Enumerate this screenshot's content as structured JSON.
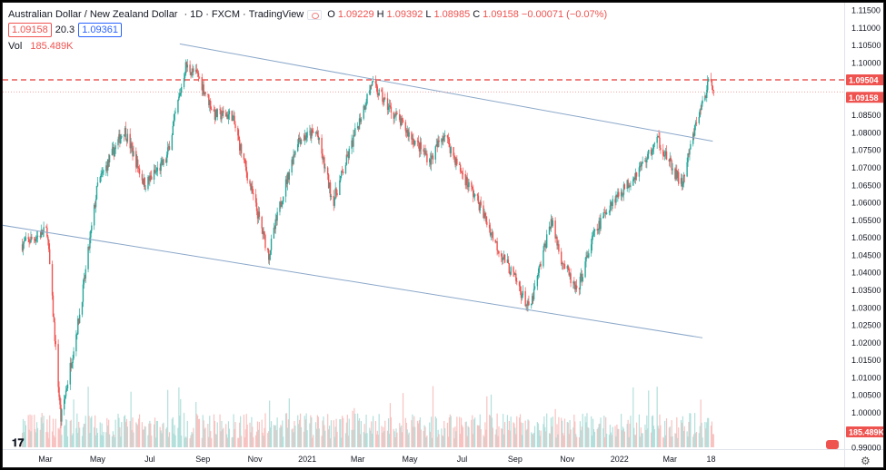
{
  "header": {
    "symbol": "Australian Dollar / New Zealand Dollar",
    "interval": "1D",
    "exchange": "FXCM",
    "source": "TradingView",
    "ohlc": [
      {
        "k": "O",
        "v": "1.09229"
      },
      {
        "k": "H",
        "v": "1.09392"
      },
      {
        "k": "L",
        "v": "1.08985"
      },
      {
        "k": "C",
        "v": "1.09158"
      },
      {
        "k": "",
        "v": "−0.00071 (−0.07%)"
      }
    ]
  },
  "chips": {
    "bid": "1.09158",
    "spread": "20.3",
    "ask": "1.09361"
  },
  "volume": {
    "label": "Vol",
    "value": "185.489K"
  },
  "colors": {
    "up": "#26a69a",
    "down": "#ef5350",
    "trend": "#8aa7c9",
    "resistance": "#e53935"
  },
  "icons": {
    "logo": "tradingview-logo-icon",
    "settings": "gear-icon",
    "snapshot": "camera-icon"
  },
  "chart_data": {
    "type": "candlestick",
    "title": "",
    "x_axis": {
      "ticks": [
        "Mar",
        "May",
        "Jul",
        "Sep",
        "Nov",
        "2021",
        "Mar",
        "May",
        "Jul",
        "Sep",
        "Nov",
        "2022",
        "Mar",
        "18"
      ]
    },
    "y_axis": {
      "ticks": [
        "1.11500",
        "1.11000",
        "1.10500",
        "1.10000",
        "1.09500",
        "1.09000",
        "1.08500",
        "1.08000",
        "1.07500",
        "1.07000",
        "1.06500",
        "1.06000",
        "1.05500",
        "1.05000",
        "1.04500",
        "1.04000",
        "1.03500",
        "1.03000",
        "1.02500",
        "1.02000",
        "1.01500",
        "1.01000",
        "1.00500",
        "1.00000",
        "0.99500",
        "0.99000"
      ],
      "range": [
        0.9875,
        1.1175
      ]
    },
    "price_labels": [
      {
        "value": 1.09504,
        "text": "1.09504",
        "style": "resistance"
      },
      {
        "value": 1.09158,
        "text": "1.09158",
        "style": "last"
      }
    ],
    "volume_label": "185.489K",
    "trendlines": [
      {
        "name": "upper channel",
        "from": {
          "date": "2020-08-05",
          "price": 1.1053
        },
        "to": {
          "date": "2022-04-20",
          "price": 1.0775
        }
      },
      {
        "name": "lower channel",
        "from": {
          "date": "2020-01-10",
          "price": 1.0535
        },
        "to": {
          "date": "2022-04-08",
          "price": 1.0213
        }
      }
    ],
    "resistance_level": 1.09504,
    "last_price": 1.09158,
    "anchors": [
      [
        "2020-02-03",
        1.048
      ],
      [
        "2020-03-03",
        1.052
      ],
      [
        "2020-03-19",
        0.998
      ],
      [
        "2020-04-10",
        1.028
      ],
      [
        "2020-05-01",
        1.065
      ],
      [
        "2020-06-01",
        1.081
      ],
      [
        "2020-06-25",
        1.065
      ],
      [
        "2020-07-20",
        1.072
      ],
      [
        "2020-08-12",
        1.099
      ],
      [
        "2020-08-27",
        1.096
      ],
      [
        "2020-09-15",
        1.085
      ],
      [
        "2020-10-05",
        1.085
      ],
      [
        "2020-10-26",
        1.065
      ],
      [
        "2020-11-17",
        1.045
      ],
      [
        "2020-12-01",
        1.06
      ],
      [
        "2020-12-21",
        1.078
      ],
      [
        "2021-01-12",
        1.08
      ],
      [
        "2021-01-31",
        1.06
      ],
      [
        "2021-02-20",
        1.075
      ],
      [
        "2021-03-17",
        1.094
      ],
      [
        "2021-04-10",
        1.086
      ],
      [
        "2021-05-05",
        1.078
      ],
      [
        "2021-05-25",
        1.072
      ],
      [
        "2021-06-10",
        1.08
      ],
      [
        "2021-06-25",
        1.071
      ],
      [
        "2021-07-20",
        1.06
      ],
      [
        "2021-08-10",
        1.048
      ],
      [
        "2021-09-01",
        1.038
      ],
      [
        "2021-09-18",
        1.029
      ],
      [
        "2021-10-13",
        1.055
      ],
      [
        "2021-10-25",
        1.044
      ],
      [
        "2021-11-12",
        1.034
      ],
      [
        "2021-12-01",
        1.05
      ],
      [
        "2021-12-22",
        1.06
      ],
      [
        "2022-01-10",
        1.065
      ],
      [
        "2022-01-31",
        1.072
      ],
      [
        "2022-02-15",
        1.078
      ],
      [
        "2022-03-03",
        1.07
      ],
      [
        "2022-03-15",
        1.065
      ],
      [
        "2022-04-01",
        1.083
      ],
      [
        "2022-04-18",
        1.096
      ],
      [
        "2022-04-22",
        1.0916
      ]
    ]
  }
}
